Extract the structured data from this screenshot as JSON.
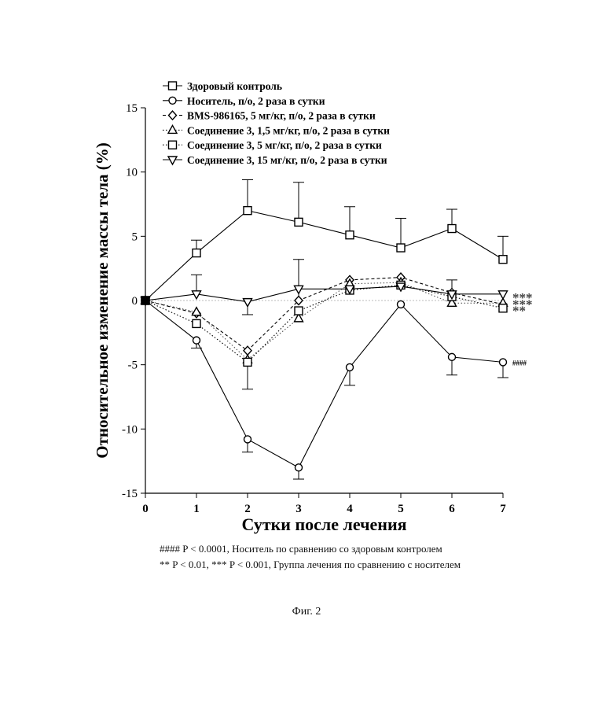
{
  "chart_data": {
    "type": "line",
    "ylabel": "Относительное изменение массы тела (%)",
    "xlabel": "Сутки после лечения",
    "x": [
      0,
      1,
      2,
      3,
      4,
      5,
      6,
      7
    ],
    "xlim": [
      0,
      7
    ],
    "ylim": [
      -15,
      15
    ],
    "yticks": [
      -15,
      -10,
      -5,
      0,
      5,
      10,
      15
    ],
    "grid": false,
    "reference_line_y": 0,
    "legend_position": "top-center",
    "series": [
      {
        "name": "Здоровый контроль",
        "marker": "square",
        "dash": "solid",
        "values": [
          0,
          3.7,
          7.0,
          6.1,
          5.1,
          4.1,
          5.6,
          3.2
        ],
        "err": [
          0,
          1.0,
          2.4,
          3.1,
          2.2,
          2.3,
          1.5,
          1.8
        ]
      },
      {
        "name": "Носитель, п/о, 2 раза в сутки",
        "marker": "circle",
        "dash": "solid",
        "values": [
          0,
          -3.1,
          -10.8,
          -13.0,
          -5.2,
          -0.3,
          -4.4,
          -4.8
        ],
        "err": [
          0,
          0.6,
          1.0,
          0.9,
          1.4,
          0,
          1.4,
          1.2
        ]
      },
      {
        "name": "BMS-986165, 5 мг/кг, п/о, 2 раза в сутки",
        "marker": "diamond",
        "dash": "dashed",
        "values": [
          0,
          -1.0,
          -3.9,
          0.0,
          1.6,
          1.8,
          0.6,
          -0.3
        ],
        "err": [
          0,
          0,
          3.0,
          3.2,
          0,
          0,
          1.0,
          0
        ]
      },
      {
        "name": "Соединение 3, 1,5 мг/кг, п/о, 2 раза в сутки",
        "marker": "triangle-up",
        "dash": "dotted",
        "values": [
          0,
          -0.9,
          -4.6,
          -1.4,
          1.3,
          1.4,
          -0.2,
          -0.2
        ],
        "err": [
          0,
          0,
          0,
          0,
          0,
          0,
          0,
          0
        ]
      },
      {
        "name": "Соединение 3, 5 мг/кг, п/о, 2 раза в сутки",
        "marker": "square",
        "dash": "dotted",
        "values": [
          0,
          -1.8,
          -4.8,
          -0.8,
          0.8,
          1.2,
          0.3,
          -0.6
        ],
        "err": [
          0,
          0,
          0,
          0,
          0,
          0,
          0,
          0
        ]
      },
      {
        "name": "Соединение 3, 15 мг/кг, п/о, 2 раза в сутки",
        "marker": "triangle-down",
        "dash": "solid",
        "values": [
          0,
          0.5,
          -0.1,
          0.9,
          0.9,
          1.1,
          0.5,
          0.5
        ],
        "err": [
          0,
          1.5,
          1.0,
          0,
          0,
          0,
          0,
          0
        ]
      }
    ],
    "annotations": [
      {
        "text": "####",
        "x": 7,
        "y": -4.8
      },
      {
        "text": "***",
        "x": 7,
        "y": 0.3
      },
      {
        "text": "***",
        "x": 7,
        "y": -0.2
      },
      {
        "text": "**",
        "x": 7,
        "y": -0.7
      }
    ]
  },
  "footnotes": {
    "line1": "#### P < 0.0001, Носитель по сравнению со здоровым контролем",
    "line2": "** P < 0.01, *** P < 0.001, Группа лечения по сравнению с носителем"
  },
  "caption": "Фиг. 2"
}
